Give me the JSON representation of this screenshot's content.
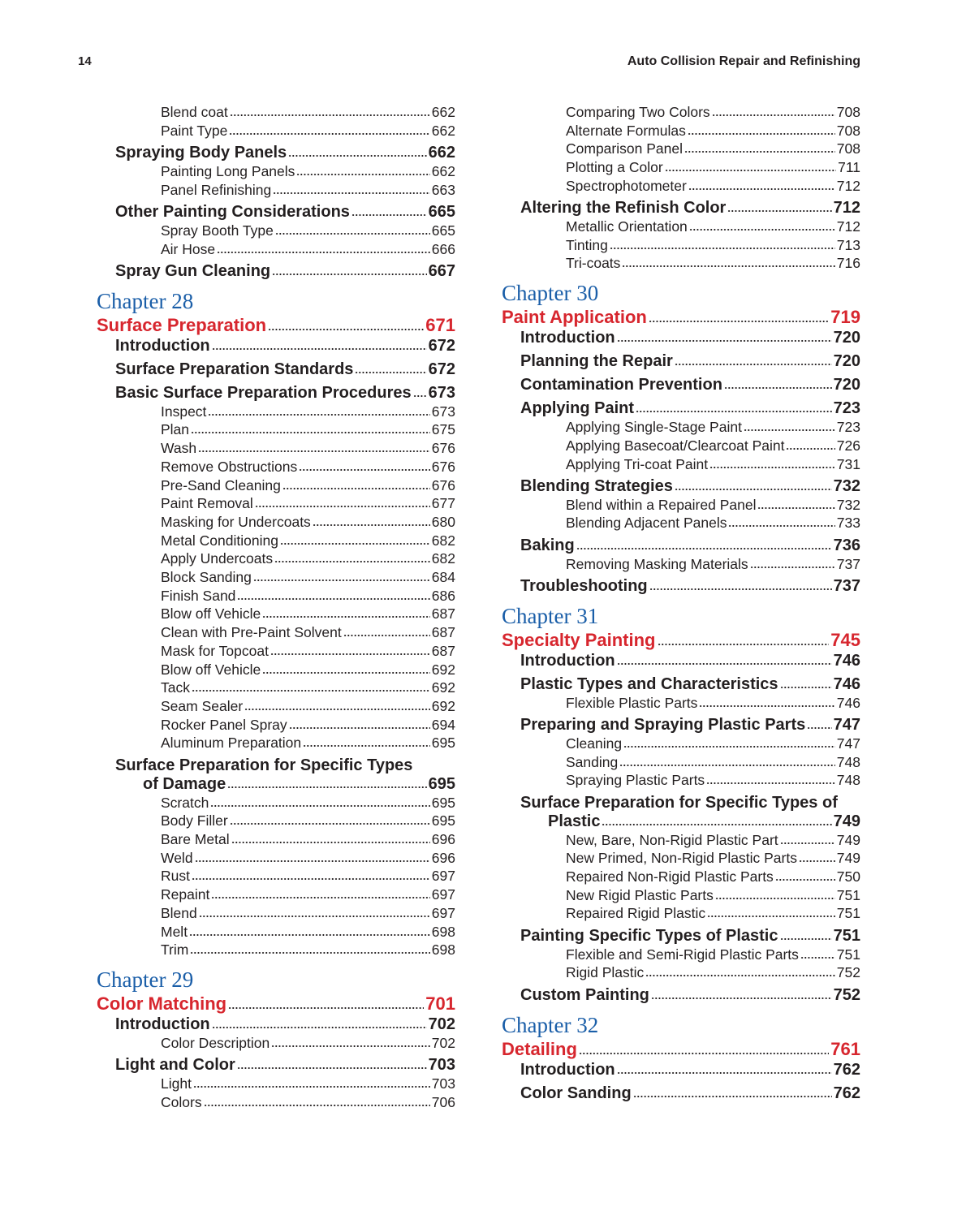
{
  "header": {
    "page_number": "14",
    "book_title": "Auto Collision Repair and Refinishing"
  },
  "colors": {
    "chapter": "#1a5ea8",
    "chapter_title": "#d7262e",
    "text": "#231f20"
  },
  "left_column": [
    {
      "t": "s",
      "label": "Blend coat ",
      "page": "662"
    },
    {
      "t": "s",
      "label": "Paint Type",
      "page": "662"
    },
    {
      "t": "h",
      "label": "Spraying Body Panels ",
      "page": "662"
    },
    {
      "t": "s",
      "label": "Painting Long Panels ",
      "page": "662"
    },
    {
      "t": "s",
      "label": "Panel Refinishing ",
      "page": "663"
    },
    {
      "t": "h",
      "label": "Other Painting Considerations",
      "page": "665"
    },
    {
      "t": "s",
      "label": "Spray Booth Type ",
      "page": "665"
    },
    {
      "t": "s",
      "label": "Air Hose ",
      "page": "666"
    },
    {
      "t": "h",
      "label": "Spray Gun Cleaning ",
      "page": "667"
    },
    {
      "t": "chap",
      "label": "Chapter 28"
    },
    {
      "t": "title",
      "label": "Surface Preparation ",
      "page": "671"
    },
    {
      "t": "h",
      "label": "Introduction",
      "page": "672"
    },
    {
      "t": "h",
      "label": "Surface Preparation Standards",
      "page": "672"
    },
    {
      "t": "h",
      "label": "Basic Surface Preparation Procedures ",
      "page": "673"
    },
    {
      "t": "s",
      "label": "Inspect",
      "page": "673"
    },
    {
      "t": "s",
      "label": "Plan ",
      "page": "675"
    },
    {
      "t": "s",
      "label": "Wash ",
      "page": "676"
    },
    {
      "t": "s",
      "label": "Remove Obstructions",
      "page": "676"
    },
    {
      "t": "s",
      "label": "Pre-Sand Cleaning",
      "page": "676"
    },
    {
      "t": "s",
      "label": "Paint Removal ",
      "page": "677"
    },
    {
      "t": "s",
      "label": "Masking for Undercoats ",
      "page": "680"
    },
    {
      "t": "s",
      "label": "Metal Conditioning ",
      "page": "682"
    },
    {
      "t": "s",
      "label": "Apply Undercoats",
      "page": "682"
    },
    {
      "t": "s",
      "label": "Block Sanding ",
      "page": "684"
    },
    {
      "t": "s",
      "label": "Finish Sand ",
      "page": "686"
    },
    {
      "t": "s",
      "label": "Blow off Vehicle ",
      "page": "687"
    },
    {
      "t": "s",
      "label": "Clean with Pre-Paint Solvent",
      "page": "687"
    },
    {
      "t": "s",
      "label": "Mask for Topcoat ",
      "page": "687"
    },
    {
      "t": "s",
      "label": "Blow off Vehicle ",
      "page": "692"
    },
    {
      "t": "s",
      "label": "Tack",
      "page": "692"
    },
    {
      "t": "s",
      "label": "Seam Sealer ",
      "page": "692"
    },
    {
      "t": "s",
      "label": "Rocker Panel Spray",
      "page": "694"
    },
    {
      "t": "s",
      "label": "Aluminum Preparation",
      "page": "695"
    },
    {
      "t": "h",
      "label": "Surface Preparation for Specific Types",
      "cont": "of Damage ",
      "page": "695"
    },
    {
      "t": "s",
      "label": "Scratch",
      "page": "695"
    },
    {
      "t": "s",
      "label": "Body Filler ",
      "page": "695"
    },
    {
      "t": "s",
      "label": "Bare Metal",
      "page": "696"
    },
    {
      "t": "s",
      "label": "Weld ",
      "page": "696"
    },
    {
      "t": "s",
      "label": "Rust",
      "page": "697"
    },
    {
      "t": "s",
      "label": "Repaint",
      "page": "697"
    },
    {
      "t": "s",
      "label": "Blend ",
      "page": "697"
    },
    {
      "t": "s",
      "label": "Melt ",
      "page": "698"
    },
    {
      "t": "s",
      "label": "Trim ",
      "page": "698"
    },
    {
      "t": "chap",
      "label": "Chapter 29"
    },
    {
      "t": "title",
      "label": "Color Matching",
      "page": "701"
    },
    {
      "t": "h",
      "label": "Introduction",
      "page": "702"
    },
    {
      "t": "s",
      "label": "Color Description ",
      "page": "702"
    },
    {
      "t": "h",
      "label": "Light and Color",
      "page": "703"
    },
    {
      "t": "s",
      "label": "Light ",
      "page": "703"
    },
    {
      "t": "s",
      "label": "Colors",
      "page": "706"
    }
  ],
  "right_column": [
    {
      "t": "s",
      "label": "Comparing Two Colors ",
      "page": "708"
    },
    {
      "t": "s",
      "label": "Alternate Formulas",
      "page": "708"
    },
    {
      "t": "s",
      "label": "Comparison Panel",
      "page": "708"
    },
    {
      "t": "s",
      "label": "Plotting a Color",
      "page": "711"
    },
    {
      "t": "s",
      "label": "Spectrophotometer",
      "page": "712"
    },
    {
      "t": "h",
      "label": "Altering the Refinish Color ",
      "page": "712"
    },
    {
      "t": "s",
      "label": "Metallic Orientation ",
      "page": "712"
    },
    {
      "t": "s",
      "label": "Tinting ",
      "page": "713"
    },
    {
      "t": "s",
      "label": "Tri-coats",
      "page": "716"
    },
    {
      "t": "chap",
      "label": "Chapter 30"
    },
    {
      "t": "title",
      "label": "Paint Application ",
      "page": "719"
    },
    {
      "t": "h",
      "label": "Introduction",
      "page": "720"
    },
    {
      "t": "h",
      "label": "Planning the Repair",
      "page": "720"
    },
    {
      "t": "h",
      "label": "Contamination Prevention",
      "page": "720"
    },
    {
      "t": "h",
      "label": "Applying Paint ",
      "page": "723"
    },
    {
      "t": "s",
      "label": "Applying Single-Stage Paint",
      "page": "723"
    },
    {
      "t": "s",
      "label": "Applying Basecoat/Clearcoat Paint",
      "page": "726"
    },
    {
      "t": "s",
      "label": "Applying Tri-coat Paint",
      "page": "731"
    },
    {
      "t": "h",
      "label": "Blending Strategies",
      "page": "732"
    },
    {
      "t": "s",
      "label": "Blend within a Repaired Panel ",
      "page": "732"
    },
    {
      "t": "s",
      "label": "Blending Adjacent Panels ",
      "page": "733"
    },
    {
      "t": "h",
      "label": "Baking",
      "page": "736"
    },
    {
      "t": "s",
      "label": "Removing Masking Materials",
      "page": "737"
    },
    {
      "t": "h",
      "label": "Troubleshooting ",
      "page": "737"
    },
    {
      "t": "chap",
      "label": "Chapter 31"
    },
    {
      "t": "title",
      "label": "Specialty Painting ",
      "page": "745"
    },
    {
      "t": "h",
      "label": "Introduction",
      "page": "746"
    },
    {
      "t": "h",
      "label": "Plastic Types and Characteristics ",
      "page": "746"
    },
    {
      "t": "s",
      "label": "Flexible Plastic Parts",
      "page": "746"
    },
    {
      "t": "h",
      "label": "Preparing and Spraying Plastic Parts",
      "page": "747"
    },
    {
      "t": "s",
      "label": "Cleaning ",
      "page": "747"
    },
    {
      "t": "s",
      "label": "Sanding",
      "page": "748"
    },
    {
      "t": "s",
      "label": "Spraying Plastic Parts ",
      "page": "748"
    },
    {
      "t": "h",
      "label": "Surface Preparation for Specific Types of",
      "cont": "Plastic",
      "page": "749"
    },
    {
      "t": "s",
      "label": "New, Bare, Non-Rigid Plastic Part ",
      "page": "749"
    },
    {
      "t": "s",
      "label": "New Primed, Non-Rigid Plastic Parts",
      "page": "749"
    },
    {
      "t": "s",
      "label": "Repaired Non-Rigid Plastic Parts",
      "page": "750"
    },
    {
      "t": "s",
      "label": "New Rigid Plastic Parts",
      "page": "751"
    },
    {
      "t": "s",
      "label": "Repaired Rigid Plastic",
      "page": "751"
    },
    {
      "t": "h",
      "label": "Painting Specific Types of Plastic",
      "page": "751"
    },
    {
      "t": "s",
      "label": "Flexible and Semi-Rigid Plastic Parts ",
      "page": "751"
    },
    {
      "t": "s",
      "label": "Rigid Plastic ",
      "page": "752"
    },
    {
      "t": "h",
      "label": "Custom Painting",
      "page": "752"
    },
    {
      "t": "chap",
      "label": "Chapter 32"
    },
    {
      "t": "title",
      "label": "Detailing",
      "page": "761"
    },
    {
      "t": "h",
      "label": "Introduction",
      "page": "762"
    },
    {
      "t": "h",
      "label": "Color Sanding",
      "page": "762"
    }
  ]
}
